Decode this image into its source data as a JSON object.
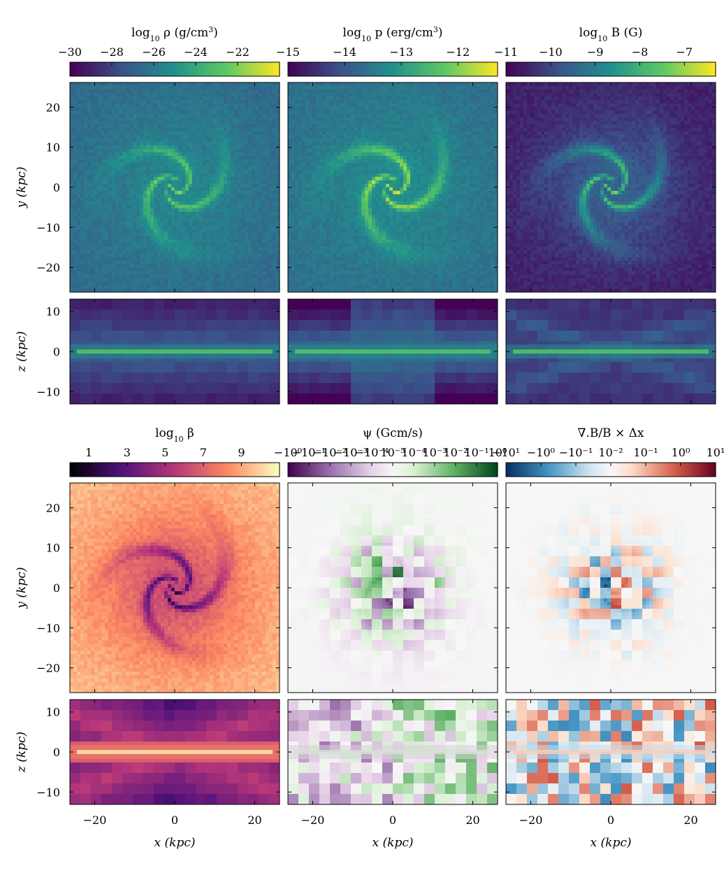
{
  "chart_data": {
    "type": "heatmap",
    "panels_layout": {
      "rows": 4,
      "cols": 3
    },
    "x_axis": {
      "label": "x (kpc)",
      "ticks": [
        -20,
        0,
        20
      ],
      "tick_labels": [
        "−20",
        "0",
        "20"
      ],
      "range": [
        -26.2,
        26.2
      ]
    },
    "y_axis": {
      "label": "y (kpc)",
      "ticks": [
        20,
        10,
        0,
        -10,
        -20
      ],
      "tick_labels": [
        "20",
        "10",
        "0",
        "−10",
        "−20"
      ],
      "range": [
        -26.2,
        26.2
      ]
    },
    "z_axis": {
      "label": "z (kpc)",
      "ticks": [
        10,
        0,
        -10
      ],
      "tick_labels": [
        "10",
        "0",
        "−10"
      ],
      "range": [
        -13.1,
        13.1
      ]
    },
    "colorbars": [
      {
        "id": "rho",
        "title": "log10 ρ (g/cm³)",
        "title_main": "log",
        "title_sub": "10",
        "title_rest": " ρ (g/cm",
        "title_sup": "3",
        "title_end": ")",
        "cmap": "viridis",
        "range": [
          -30,
          -20
        ],
        "ticks": [
          -30,
          -28,
          -26,
          -24,
          -22
        ],
        "tick_labels": [
          "−30",
          "−28",
          "−26",
          "−24",
          "−22"
        ]
      },
      {
        "id": "pressure",
        "title": "log10 p (erg/cm³)",
        "title_main": "log",
        "title_sub": "10",
        "title_rest": " p (erg/cm",
        "title_sup": "3",
        "title_end": ")",
        "cmap": "viridis",
        "range": [
          -15,
          -11.3
        ],
        "ticks": [
          -15,
          -14,
          -13,
          -12
        ],
        "tick_labels": [
          "−15",
          "−14",
          "−13",
          "−12"
        ]
      },
      {
        "id": "bfield",
        "title": "log10 B (G)",
        "title_main": "log",
        "title_sub": "10",
        "title_rest": " B (G)",
        "title_sup": "",
        "title_end": "",
        "cmap": "viridis",
        "range": [
          -11,
          -6.3
        ],
        "ticks": [
          -11,
          -10,
          -9,
          -8,
          -7
        ],
        "tick_labels": [
          "−11",
          "−10",
          "−9",
          "−8",
          "−7"
        ]
      },
      {
        "id": "beta",
        "title": "log10 β",
        "title_main": "log",
        "title_sub": "10",
        "title_rest": " β",
        "title_sup": "",
        "title_end": "",
        "cmap": "magma",
        "range": [
          0,
          11
        ],
        "ticks": [
          1,
          3,
          5,
          7,
          9
        ],
        "tick_labels": [
          "1",
          "3",
          "5",
          "7",
          "9"
        ]
      },
      {
        "id": "psi",
        "title": "ψ (Gcm/s)",
        "title_main": "ψ (Gcm/s)",
        "title_sub": "",
        "title_rest": "",
        "title_sup": "",
        "title_end": "",
        "cmap": "PRGn",
        "range": [
          -1,
          1
        ],
        "ticks": [
          "-10^0",
          "-10^-1",
          "-10^-2",
          "-10^-3",
          "-10^-4",
          "10^-5",
          "10^-4",
          "10^-3",
          "10^-2",
          "10^-1",
          "10^0"
        ],
        "tick_labels": [
          "−10⁰",
          "−10⁻¹",
          "−10⁻²",
          "−10⁻³",
          "−10⁻⁴",
          "10⁻⁵",
          "10⁻⁴",
          "10⁻³",
          "10⁻²",
          "10⁻¹",
          "10⁰"
        ]
      },
      {
        "id": "divb",
        "title": "∇.B/B × Δx",
        "title_main": "∇.B/B × Δx",
        "title_sub": "",
        "title_rest": "",
        "title_sup": "",
        "title_end": "",
        "cmap": "RdBu_r",
        "range": [
          -1,
          1
        ],
        "ticks": [
          "-10^1",
          "-10^0",
          "-10^-1",
          "10^-2",
          "10^-1",
          "10^0",
          "10^1"
        ],
        "tick_labels": [
          "−10¹",
          "−10⁰",
          "−10⁻¹",
          "10⁻²",
          "10⁻¹",
          "10⁰",
          "10¹"
        ]
      }
    ],
    "panels": [
      {
        "id": "rho-xy",
        "field": "density",
        "view": "face-on (x-y)",
        "cmap": "viridis",
        "bg_level": 0.38,
        "feature_level": 0.72,
        "arm_strength": 0.3
      },
      {
        "id": "pressure-xy",
        "field": "pressure",
        "view": "face-on (x-y)",
        "cmap": "viridis",
        "bg_level": 0.4,
        "feature_level": 0.85,
        "arm_strength": 0.42
      },
      {
        "id": "bfield-xy",
        "field": "magnetic field",
        "view": "face-on (x-y)",
        "cmap": "viridis",
        "bg_level": 0.12,
        "feature_level": 0.55,
        "arm_strength": 0.35
      },
      {
        "id": "rho-xz",
        "field": "density",
        "view": "edge-on (x-z)",
        "cmap": "viridis"
      },
      {
        "id": "pressure-xz",
        "field": "pressure",
        "view": "edge-on (x-z)",
        "cmap": "viridis"
      },
      {
        "id": "bfield-xz",
        "field": "magnetic field",
        "view": "edge-on (x-z)",
        "cmap": "viridis"
      },
      {
        "id": "beta-xy",
        "field": "plasma beta",
        "view": "face-on (x-y)",
        "cmap": "magma"
      },
      {
        "id": "psi-xy",
        "field": "divergence cleaning scalar psi",
        "view": "face-on (x-y)",
        "cmap": "PRGn"
      },
      {
        "id": "divb-xy",
        "field": "divergence error",
        "view": "face-on (x-y)",
        "cmap": "RdBu_r"
      },
      {
        "id": "beta-xz",
        "field": "plasma beta",
        "view": "edge-on (x-z)",
        "cmap": "magma"
      },
      {
        "id": "psi-xz",
        "field": "divergence cleaning scalar psi",
        "view": "edge-on (x-z)",
        "cmap": "PRGn"
      },
      {
        "id": "divb-xz",
        "field": "divergence error",
        "view": "edge-on (x-z)",
        "cmap": "RdBu_r"
      }
    ]
  }
}
